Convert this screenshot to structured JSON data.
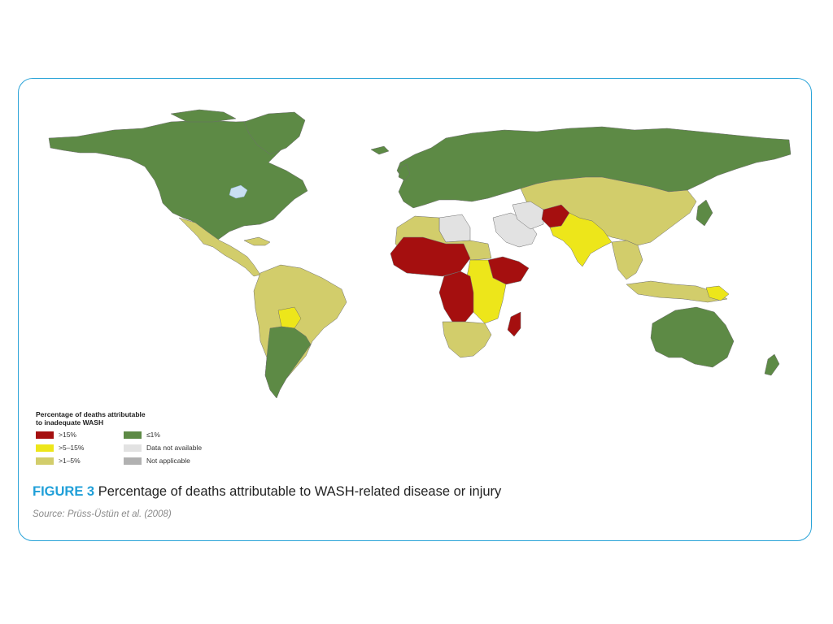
{
  "legend": {
    "title_line1": "Percentage of deaths attributable",
    "title_line2": "to inadequate WASH",
    "items": [
      {
        "label": ">15%",
        "color": "#a50f0f"
      },
      {
        "label": ">5–15%",
        "color": "#ede61a"
      },
      {
        "label": ">1–5%",
        "color": "#d2cd6b"
      },
      {
        "label": "≤1%",
        "color": "#5d8a45"
      },
      {
        "label": "Data not available",
        "color": "#e2e2e2"
      },
      {
        "label": "Not applicable",
        "color": "#b1b1b1"
      }
    ]
  },
  "caption": {
    "figure_label": "FIGURE 3",
    "text": "Percentage of deaths attributable to WASH-related disease or injury"
  },
  "source": "Source: Prüss-Üstün et al. (2008)",
  "map_colors": {
    "over15": "#a50f0f",
    "5to15": "#ede61a",
    "1to5": "#d2cd6b",
    "le1": "#5d8a45",
    "na_data": "#e2e2e2",
    "not_applicable": "#b1b1b1",
    "water": "#c9dff2",
    "border": "#6d6d6d"
  }
}
